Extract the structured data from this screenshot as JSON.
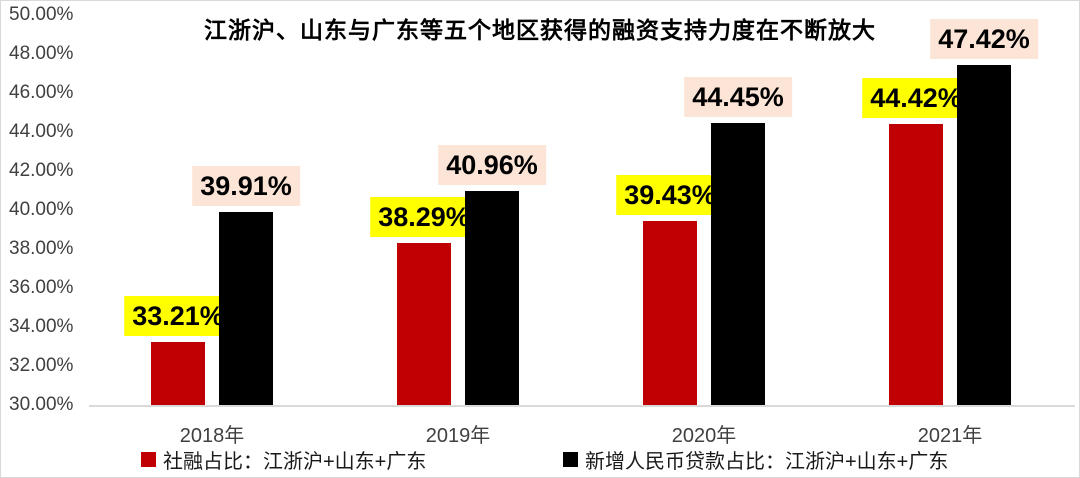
{
  "chart_data": {
    "type": "bar",
    "title": "江浙沪、山东与广东等五个地区获得的融资支持力度在不断放大",
    "categories": [
      "2018年",
      "2019年",
      "2020年",
      "2021年"
    ],
    "series": [
      {
        "name": "社融占比：江浙沪+山东+广东",
        "color": "#c00000",
        "label_bg": "#ffff00",
        "values": [
          33.21,
          38.29,
          39.43,
          44.42
        ],
        "value_labels": [
          "33.21%",
          "38.29%",
          "39.43%",
          "44.42%"
        ]
      },
      {
        "name": "新增人民币贷款占比：江浙沪+山东+广东",
        "color": "#000000",
        "label_bg": "#fce4d6",
        "values": [
          39.91,
          40.96,
          44.45,
          47.42
        ],
        "value_labels": [
          "39.91%",
          "40.96%",
          "44.45%",
          "47.42%"
        ]
      }
    ],
    "y_axis": {
      "min": 30,
      "max": 50,
      "step": 2,
      "tick_labels": [
        "50.00%",
        "48.00%",
        "46.00%",
        "44.00%",
        "42.00%",
        "40.00%",
        "38.00%",
        "36.00%",
        "34.00%",
        "32.00%",
        "30.00%"
      ]
    },
    "grid": false,
    "legend_position": "bottom",
    "colors": {
      "axis_line": "#d9d9d9",
      "tick_text": "#404040",
      "frame_border": "#d9d9d9",
      "background": "#ffffff"
    }
  }
}
